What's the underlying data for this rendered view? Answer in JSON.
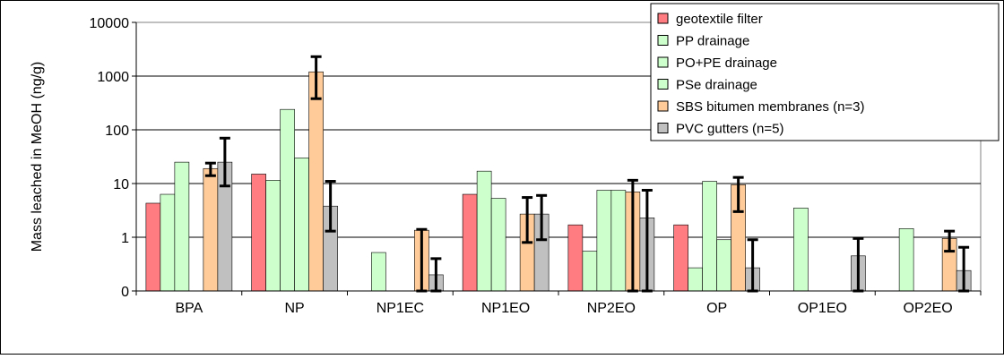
{
  "chart_data": {
    "type": "bar",
    "ylabel": "Mass leached in MeOH (ng/g)",
    "yscale": "log",
    "ylim": [
      0,
      10000
    ],
    "yticks": [
      "0",
      "1",
      "10",
      "100",
      "1000",
      "10000"
    ],
    "grid": true,
    "legend_position": "top-right",
    "categories": [
      "BPA",
      "NP",
      "NP1EC",
      "NP1EO",
      "NP2EO",
      "OP",
      "OP1EO",
      "OP2EO"
    ],
    "series": [
      {
        "name": "geotextile filter",
        "color": "#ff7c80",
        "values": [
          4.3,
          15,
          null,
          6.3,
          1.7,
          1.7,
          null,
          null
        ],
        "errors": null
      },
      {
        "name": "PP drainage",
        "color": "#ccffcc",
        "values": [
          6.3,
          11.5,
          0.52,
          17,
          0.55,
          0.27,
          3.5,
          1.45
        ],
        "errors": null
      },
      {
        "name": "PO+PE drainage",
        "color": "#ccffcc",
        "values": [
          25,
          240,
          null,
          5.3,
          7.5,
          11,
          null,
          null
        ],
        "errors": null
      },
      {
        "name": "PSe drainage",
        "color": "#ccffcc",
        "values": [
          null,
          30,
          null,
          null,
          7.5,
          0.9,
          null,
          null
        ],
        "errors": null
      },
      {
        "name": "SBS bitumen membranes (n=3)",
        "color": "#ffcc99",
        "values": [
          19,
          1200,
          1.35,
          2.7,
          7,
          9.5,
          null,
          0.95
        ],
        "errors": [
          [
            14,
            24
          ],
          [
            380,
            2300
          ],
          [
            0,
            1.4
          ],
          [
            0.8,
            5.5
          ],
          [
            0,
            11.5
          ],
          [
            3,
            13
          ],
          null,
          [
            0.55,
            1.3
          ]
        ]
      },
      {
        "name": "PVC gutters (n=5)",
        "color": "#c0c0c0",
        "values": [
          25,
          3.8,
          0.2,
          2.7,
          2.3,
          0.27,
          0.45,
          0.24
        ],
        "errors": [
          [
            9,
            70
          ],
          [
            1.3,
            11
          ],
          [
            0.1,
            0.4
          ],
          [
            0.9,
            6
          ],
          [
            0,
            7.5
          ],
          [
            0,
            0.9
          ],
          [
            0,
            0.95
          ],
          [
            0,
            0.65
          ]
        ]
      }
    ]
  }
}
